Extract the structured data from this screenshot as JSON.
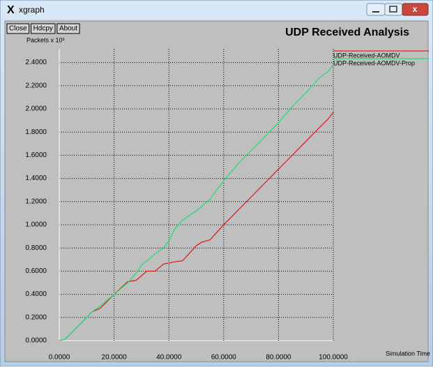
{
  "window": {
    "title": "xgraph",
    "buttons": [
      "Close",
      "Hdcpy",
      "About"
    ]
  },
  "chart_data": {
    "type": "line",
    "title": "UDP Received Analysis",
    "y_label": "Packets x 10³",
    "x_label": "Simulation Time",
    "x": [
      0,
      2,
      5,
      10,
      12,
      15,
      20,
      25,
      28,
      30,
      32,
      35,
      38,
      40,
      42,
      45,
      50,
      52,
      55,
      60,
      65,
      70,
      75,
      80,
      85,
      90,
      95,
      98,
      100
    ],
    "series": [
      {
        "name": "UDP-Received-AOMDV",
        "color": "#e02020",
        "values": [
          0,
          0.01,
          0.08,
          0.2,
          0.25,
          0.28,
          0.4,
          0.51,
          0.52,
          0.56,
          0.6,
          0.6,
          0.66,
          0.67,
          0.68,
          0.69,
          0.82,
          0.85,
          0.87,
          1.0,
          1.12,
          1.24,
          1.36,
          1.48,
          1.6,
          1.72,
          1.84,
          1.91,
          1.97
        ]
      },
      {
        "name": "UDP-Received-AOMDV-Prop",
        "color": "#20e070",
        "values": [
          0,
          0.01,
          0.08,
          0.2,
          0.25,
          0.3,
          0.4,
          0.5,
          0.58,
          0.65,
          0.69,
          0.75,
          0.8,
          0.86,
          0.96,
          1.04,
          1.12,
          1.16,
          1.22,
          1.38,
          1.52,
          1.64,
          1.76,
          1.88,
          2.02,
          2.14,
          2.27,
          2.32,
          2.38
        ]
      }
    ],
    "xlim": [
      0,
      100
    ],
    "ylim": [
      0,
      2.5
    ],
    "xticks": [
      {
        "value": 0,
        "label": "0.0000"
      },
      {
        "value": 20,
        "label": "20.0000"
      },
      {
        "value": 40,
        "label": "40.0000"
      },
      {
        "value": 60,
        "label": "60.0000"
      },
      {
        "value": 80,
        "label": "80.0000"
      },
      {
        "value": 100,
        "label": "100.0000"
      }
    ],
    "yticks": [
      {
        "value": 0,
        "label": "0.0000"
      },
      {
        "value": 0.2,
        "label": "0.2000"
      },
      {
        "value": 0.4,
        "label": "0.4000"
      },
      {
        "value": 0.6,
        "label": "0.6000"
      },
      {
        "value": 0.8,
        "label": "0.8000"
      },
      {
        "value": 1.0,
        "label": "1.0000"
      },
      {
        "value": 1.2,
        "label": "1.2000"
      },
      {
        "value": 1.4,
        "label": "1.4000"
      },
      {
        "value": 1.6,
        "label": "1.6000"
      },
      {
        "value": 1.8,
        "label": "1.8000"
      },
      {
        "value": 2.0,
        "label": "2.0000"
      },
      {
        "value": 2.2,
        "label": "2.2000"
      },
      {
        "value": 2.4,
        "label": "2.4000"
      }
    ],
    "grid": true,
    "legend": "upper right"
  }
}
